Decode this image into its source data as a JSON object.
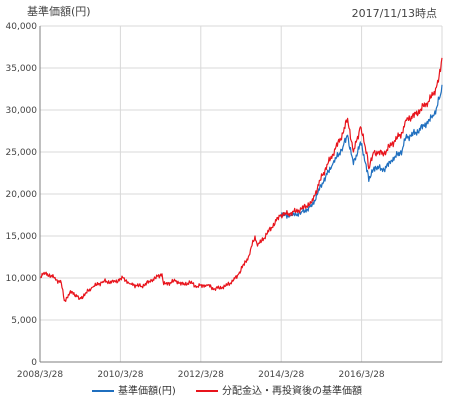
{
  "chart_data": {
    "type": "line",
    "title": "基準価額(円)",
    "as_of": "2017/11/13時点",
    "x_ticks": [
      "2008/3/28",
      "2010/3/28",
      "2012/3/28",
      "2014/3/28",
      "2016/3/28"
    ],
    "y_ticks": [
      "0",
      "5,000",
      "10,000",
      "15,000",
      "20,000",
      "25,000",
      "30,000",
      "35,000",
      "40,000"
    ],
    "xlim": [
      "2008-03-28",
      "2017-11-13"
    ],
    "ylim": [
      0,
      40000
    ],
    "grid": true,
    "legend_position": "bottom",
    "series": [
      {
        "name": "基準価額(円)",
        "color": "#1f6fbf",
        "points": [
          [
            "2013-12-31",
            17500
          ],
          [
            "2014-03-28",
            17400
          ],
          [
            "2014-06-30",
            17800
          ],
          [
            "2014-09-30",
            18500
          ],
          [
            "2014-12-31",
            21300
          ],
          [
            "2015-03-31",
            23500
          ],
          [
            "2015-06-30",
            25600
          ],
          [
            "2015-08-10",
            27000
          ],
          [
            "2015-09-30",
            23500
          ],
          [
            "2015-11-30",
            26200
          ],
          [
            "2016-01-31",
            22800
          ],
          [
            "2016-02-12",
            21500
          ],
          [
            "2016-03-28",
            23200
          ],
          [
            "2016-06-24",
            22900
          ],
          [
            "2016-08-31",
            24000
          ],
          [
            "2016-11-30",
            25200
          ],
          [
            "2016-12-31",
            26700
          ],
          [
            "2017-03-31",
            27300
          ],
          [
            "2017-06-30",
            28400
          ],
          [
            "2017-08-31",
            29300
          ],
          [
            "2017-09-30",
            30400
          ],
          [
            "2017-10-31",
            31800
          ],
          [
            "2017-11-13",
            33000
          ]
        ]
      },
      {
        "name": "分配金込・再投資後の基準価額",
        "color": "#e8141c",
        "points": [
          [
            "2008-03-28",
            10200
          ],
          [
            "2008-05-15",
            10600
          ],
          [
            "2008-07-31",
            10000
          ],
          [
            "2008-09-30",
            9400
          ],
          [
            "2008-10-27",
            7300
          ],
          [
            "2008-12-31",
            8400
          ],
          [
            "2009-03-10",
            7500
          ],
          [
            "2009-06-30",
            8900
          ],
          [
            "2009-09-30",
            9600
          ],
          [
            "2009-12-31",
            9500
          ],
          [
            "2010-03-28",
            10000
          ],
          [
            "2010-05-25",
            9300
          ],
          [
            "2010-08-31",
            9000
          ],
          [
            "2010-11-30",
            9700
          ],
          [
            "2010-12-31",
            10000
          ],
          [
            "2011-02-28",
            10500
          ],
          [
            "2011-03-15",
            9200
          ],
          [
            "2011-06-30",
            9700
          ],
          [
            "2011-08-31",
            9200
          ],
          [
            "2011-10-31",
            9500
          ],
          [
            "2011-12-31",
            9000
          ],
          [
            "2012-03-28",
            9200
          ],
          [
            "2012-06-04",
            8700
          ],
          [
            "2012-08-31",
            9000
          ],
          [
            "2012-11-15",
            9700
          ],
          [
            "2012-12-31",
            10500
          ],
          [
            "2013-03-31",
            12700
          ],
          [
            "2013-05-22",
            15000
          ],
          [
            "2013-06-13",
            13800
          ],
          [
            "2013-08-31",
            15200
          ],
          [
            "2013-12-31",
            17500
          ],
          [
            "2014-03-28",
            17700
          ],
          [
            "2014-06-30",
            18200
          ],
          [
            "2014-09-30",
            19000
          ],
          [
            "2014-12-31",
            22200
          ],
          [
            "2015-03-31",
            24700
          ],
          [
            "2015-06-30",
            27200
          ],
          [
            "2015-08-10",
            29000
          ],
          [
            "2015-09-30",
            25000
          ],
          [
            "2015-11-30",
            28000
          ],
          [
            "2016-01-31",
            24500
          ],
          [
            "2016-02-12",
            23000
          ],
          [
            "2016-03-28",
            25000
          ],
          [
            "2016-06-24",
            24800
          ],
          [
            "2016-08-31",
            26000
          ],
          [
            "2016-11-30",
            27300
          ],
          [
            "2016-12-31",
            28800
          ],
          [
            "2017-03-31",
            29500
          ],
          [
            "2017-06-30",
            30800
          ],
          [
            "2017-08-31",
            31900
          ],
          [
            "2017-09-30",
            33000
          ],
          [
            "2017-10-31",
            34600
          ],
          [
            "2017-11-13",
            36200
          ]
        ]
      }
    ]
  }
}
